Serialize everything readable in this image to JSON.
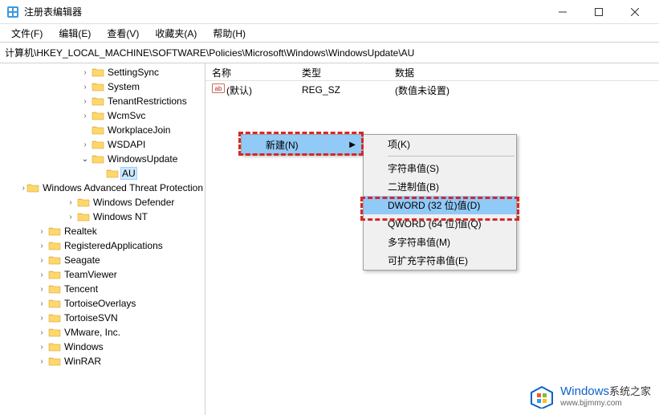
{
  "window": {
    "title": "注册表编辑器"
  },
  "menubar": {
    "items": [
      "文件(F)",
      "编辑(E)",
      "查看(V)",
      "收藏夹(A)",
      "帮助(H)"
    ]
  },
  "address": "计算机\\HKEY_LOCAL_MACHINE\\SOFTWARE\\Policies\\Microsoft\\Windows\\WindowsUpdate\\AU",
  "tree": {
    "items": [
      {
        "indent": 96,
        "expander": ">",
        "label": "SettingSync"
      },
      {
        "indent": 96,
        "expander": ">",
        "label": "System"
      },
      {
        "indent": 96,
        "expander": ">",
        "label": "TenantRestrictions"
      },
      {
        "indent": 96,
        "expander": ">",
        "label": "WcmSvc"
      },
      {
        "indent": 96,
        "expander": "",
        "label": "WorkplaceJoin"
      },
      {
        "indent": 96,
        "expander": ">",
        "label": "WSDAPI"
      },
      {
        "indent": 96,
        "expander": "v",
        "label": "WindowsUpdate"
      },
      {
        "indent": 114,
        "expander": "",
        "label": "AU",
        "selected": true
      },
      {
        "indent": 78,
        "expander": ">",
        "label": "Windows Advanced Threat Protection"
      },
      {
        "indent": 78,
        "expander": ">",
        "label": "Windows Defender"
      },
      {
        "indent": 78,
        "expander": ">",
        "label": "Windows NT"
      },
      {
        "indent": 42,
        "expander": ">",
        "label": "Realtek"
      },
      {
        "indent": 42,
        "expander": ">",
        "label": "RegisteredApplications"
      },
      {
        "indent": 42,
        "expander": ">",
        "label": "Seagate"
      },
      {
        "indent": 42,
        "expander": ">",
        "label": "TeamViewer"
      },
      {
        "indent": 42,
        "expander": ">",
        "label": "Tencent"
      },
      {
        "indent": 42,
        "expander": ">",
        "label": "TortoiseOverlays"
      },
      {
        "indent": 42,
        "expander": ">",
        "label": "TortoiseSVN"
      },
      {
        "indent": 42,
        "expander": ">",
        "label": "VMware, Inc."
      },
      {
        "indent": 42,
        "expander": ">",
        "label": "Windows"
      },
      {
        "indent": 42,
        "expander": ">",
        "label": "WinRAR"
      }
    ]
  },
  "list": {
    "columns": {
      "name": "名称",
      "type": "类型",
      "data": "数据"
    },
    "rows": [
      {
        "icon": "ab",
        "name": "(默认)",
        "type": "REG_SZ",
        "data": "(数值未设置)"
      }
    ]
  },
  "context_parent": {
    "new_label": "新建(N)"
  },
  "context_child": {
    "items": [
      {
        "label": "项(K)"
      },
      {
        "sep": true
      },
      {
        "label": "字符串值(S)"
      },
      {
        "label": "二进制值(B)"
      },
      {
        "label": "DWORD (32 位)值(D)",
        "highlighted": true
      },
      {
        "label": "QWORD (64 位)值(Q)"
      },
      {
        "label": "多字符串值(M)"
      },
      {
        "label": "可扩充字符串值(E)"
      }
    ]
  },
  "colors": {
    "highlight_red": "#d62828",
    "menu_highlight": "#91c9f7",
    "tree_select_bg": "#cce8ff",
    "folder": "#ffd76a",
    "folder_dark": "#e6b84a"
  },
  "watermark": {
    "brand": "Windows",
    "suffix": "系统之家",
    "url": "www.bjjmmy.com"
  }
}
